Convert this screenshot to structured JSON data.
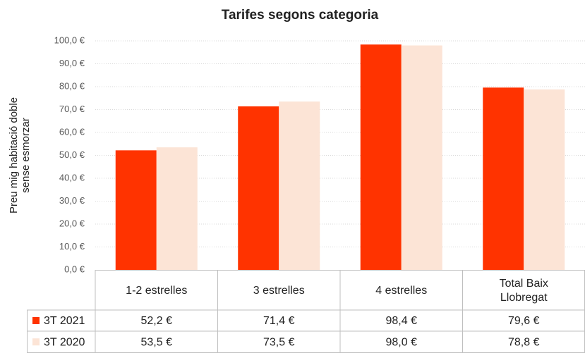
{
  "chart_data": {
    "type": "bar",
    "title": "Tarifes segons categoria",
    "y_label": [
      "Preu mig habitació doble",
      "sense esmorzar"
    ],
    "categories": [
      "1-2 estrelles",
      "3 estrelles",
      "4 estrelles",
      "Total Baix Llobregat"
    ],
    "series": [
      {
        "name": "3T 2021",
        "color": "#ff3300",
        "values": [
          52.2,
          71.4,
          98.4,
          79.6
        ],
        "value_labels": [
          "52,2 €",
          "71,4 €",
          "98,4 €",
          "79,6 €"
        ]
      },
      {
        "name": "3T 2020",
        "color": "#fce4d6",
        "values": [
          53.5,
          73.5,
          98.0,
          78.8
        ],
        "value_labels": [
          "53,5 €",
          "73,5 €",
          "98,0 €",
          "78,8 €"
        ]
      }
    ],
    "ylim": [
      0,
      100
    ],
    "yticks": [
      {
        "value": 0,
        "label": "0,0 €"
      },
      {
        "value": 10,
        "label": "10,0 €"
      },
      {
        "value": 20,
        "label": "20,0 €"
      },
      {
        "value": 30,
        "label": "30,0 €"
      },
      {
        "value": 40,
        "label": "40,0 €"
      },
      {
        "value": 50,
        "label": "50,0 €"
      },
      {
        "value": 60,
        "label": "60,0 €"
      },
      {
        "value": 70,
        "label": "70,0 €"
      },
      {
        "value": 80,
        "label": "80,0 €"
      },
      {
        "value": 90,
        "label": "90,0 €"
      },
      {
        "value": 100,
        "label": "100,0 €"
      }
    ],
    "grid": true
  }
}
